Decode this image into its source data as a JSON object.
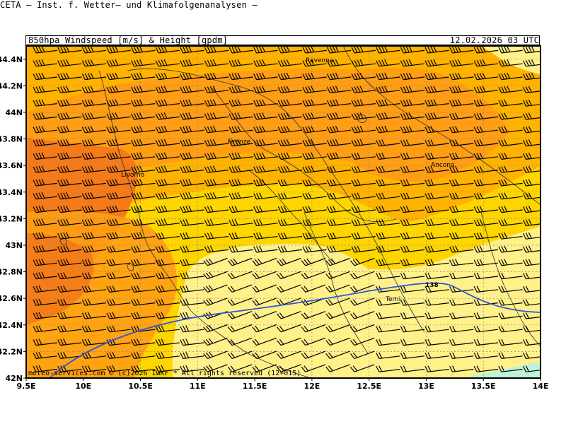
{
  "header": {
    "title": "CETA — Inst. f. Wetter— und Klimafolgenanalysen —",
    "subtitle_left": "850hpa_Windspeed_[m/s]_&_Height_[gpdm]",
    "subtitle_right": "12.02.2026 03 UTC"
  },
  "map": {
    "lon_range": [
      9.5,
      14.0
    ],
    "lat_range": [
      42.0,
      44.5
    ],
    "lat_ticks": [
      "42N",
      "42.2N",
      "42.4N",
      "42.6N",
      "42.8N",
      "43N",
      "43.2N",
      "43.4N",
      "43.6N",
      "43.8N",
      "44N",
      "44.2N",
      "44.4N"
    ],
    "lon_ticks": [
      "9.5E",
      "10E",
      "10.5E",
      "11E",
      "11.5E",
      "12E",
      "12.5E",
      "13E",
      "13.5E",
      "14E"
    ],
    "gridlines": "dotted",
    "colors": {
      "light_yellow": "#fff08a",
      "yellow": "#ffd500",
      "light_orange": "#ffb300",
      "orange": "#ff9d14",
      "dark_orange": "#f47a1a",
      "teal": "#bff2d8",
      "contour": "#2d55d6",
      "barb": "#000000"
    },
    "height_contour": {
      "label": "138"
    },
    "cities": [
      "Ravenna",
      "Firenze",
      "Livorno",
      "Ancona",
      "Terni"
    ],
    "footer": "meteo-services.com © (c)2026 IWKF * All rights reserved (12+015)"
  }
}
